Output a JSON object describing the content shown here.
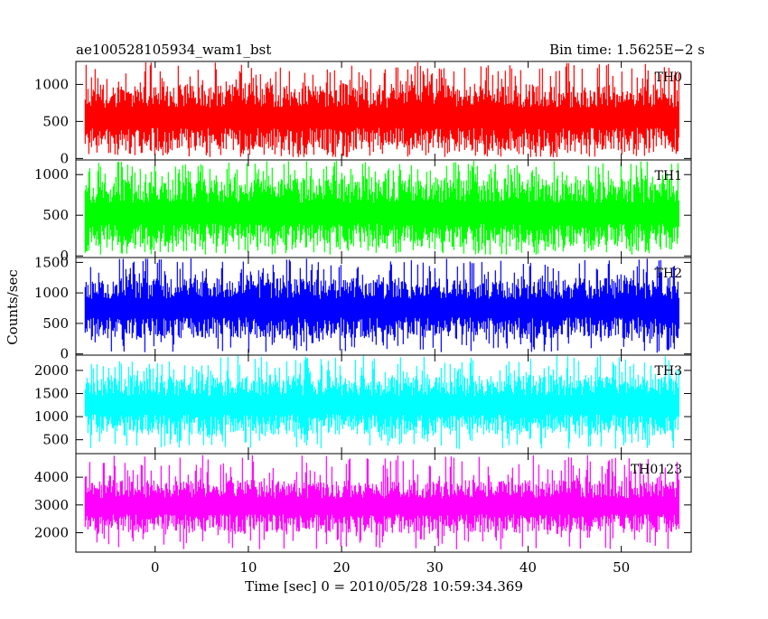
{
  "header": {
    "title": "ae100528105934_wam1_bst",
    "bin_time": "Bin time: 1.5625E−2 s"
  },
  "chart_data": {
    "type": "line",
    "xlabel": "Time [sec] 0 = 2010/05/28 10:59:34.369",
    "ylabel": "Counts/sec",
    "xlim": [
      -8.5,
      57.5
    ],
    "data_x_range": [
      -7.5,
      56.2
    ],
    "x_ticks": [
      0,
      10,
      20,
      30,
      40,
      50
    ],
    "x_tick_labels": [
      "0",
      "10",
      "20",
      "30",
      "40",
      "50"
    ],
    "grid": false,
    "panels": [
      {
        "name": "TH0",
        "color": "#ff0000",
        "ylim": [
          -20,
          1310
        ],
        "ticks": [
          0,
          500,
          1000
        ],
        "tick_labels": [
          "0",
          "500",
          "1000"
        ],
        "typical_low": 100,
        "typical_high": 1000,
        "min": 15,
        "max": 1300
      },
      {
        "name": "TH1",
        "color": "#00ff00",
        "ylim": [
          -20,
          1180
        ],
        "ticks": [
          0,
          500,
          1000
        ],
        "tick_labels": [
          "0",
          "500",
          "1000"
        ],
        "typical_low": 100,
        "typical_high": 950,
        "min": 15,
        "max": 1170
      },
      {
        "name": "TH2",
        "color": "#0000ff",
        "ylim": [
          -20,
          1580
        ],
        "ticks": [
          0,
          500,
          1000,
          1500
        ],
        "tick_labels": [
          "0",
          "500",
          "1000",
          "1500"
        ],
        "typical_low": 250,
        "typical_high": 1250,
        "min": 15,
        "max": 1570
      },
      {
        "name": "TH3",
        "color": "#00ffff",
        "ylim": [
          200,
          2330
        ],
        "ticks": [
          500,
          1000,
          1500,
          2000
        ],
        "tick_labels": [
          "500",
          "1000",
          "1500",
          "2000"
        ],
        "typical_low": 600,
        "typical_high": 1900,
        "min": 300,
        "max": 2330
      },
      {
        "name": "TH0123",
        "color": "#ff00ff",
        "ylim": [
          1300,
          4850
        ],
        "ticks": [
          2000,
          3000,
          4000
        ],
        "tick_labels": [
          "2000",
          "3000",
          "4000"
        ],
        "typical_low": 2000,
        "typical_high": 3900,
        "min": 1400,
        "max": 4800
      }
    ]
  }
}
